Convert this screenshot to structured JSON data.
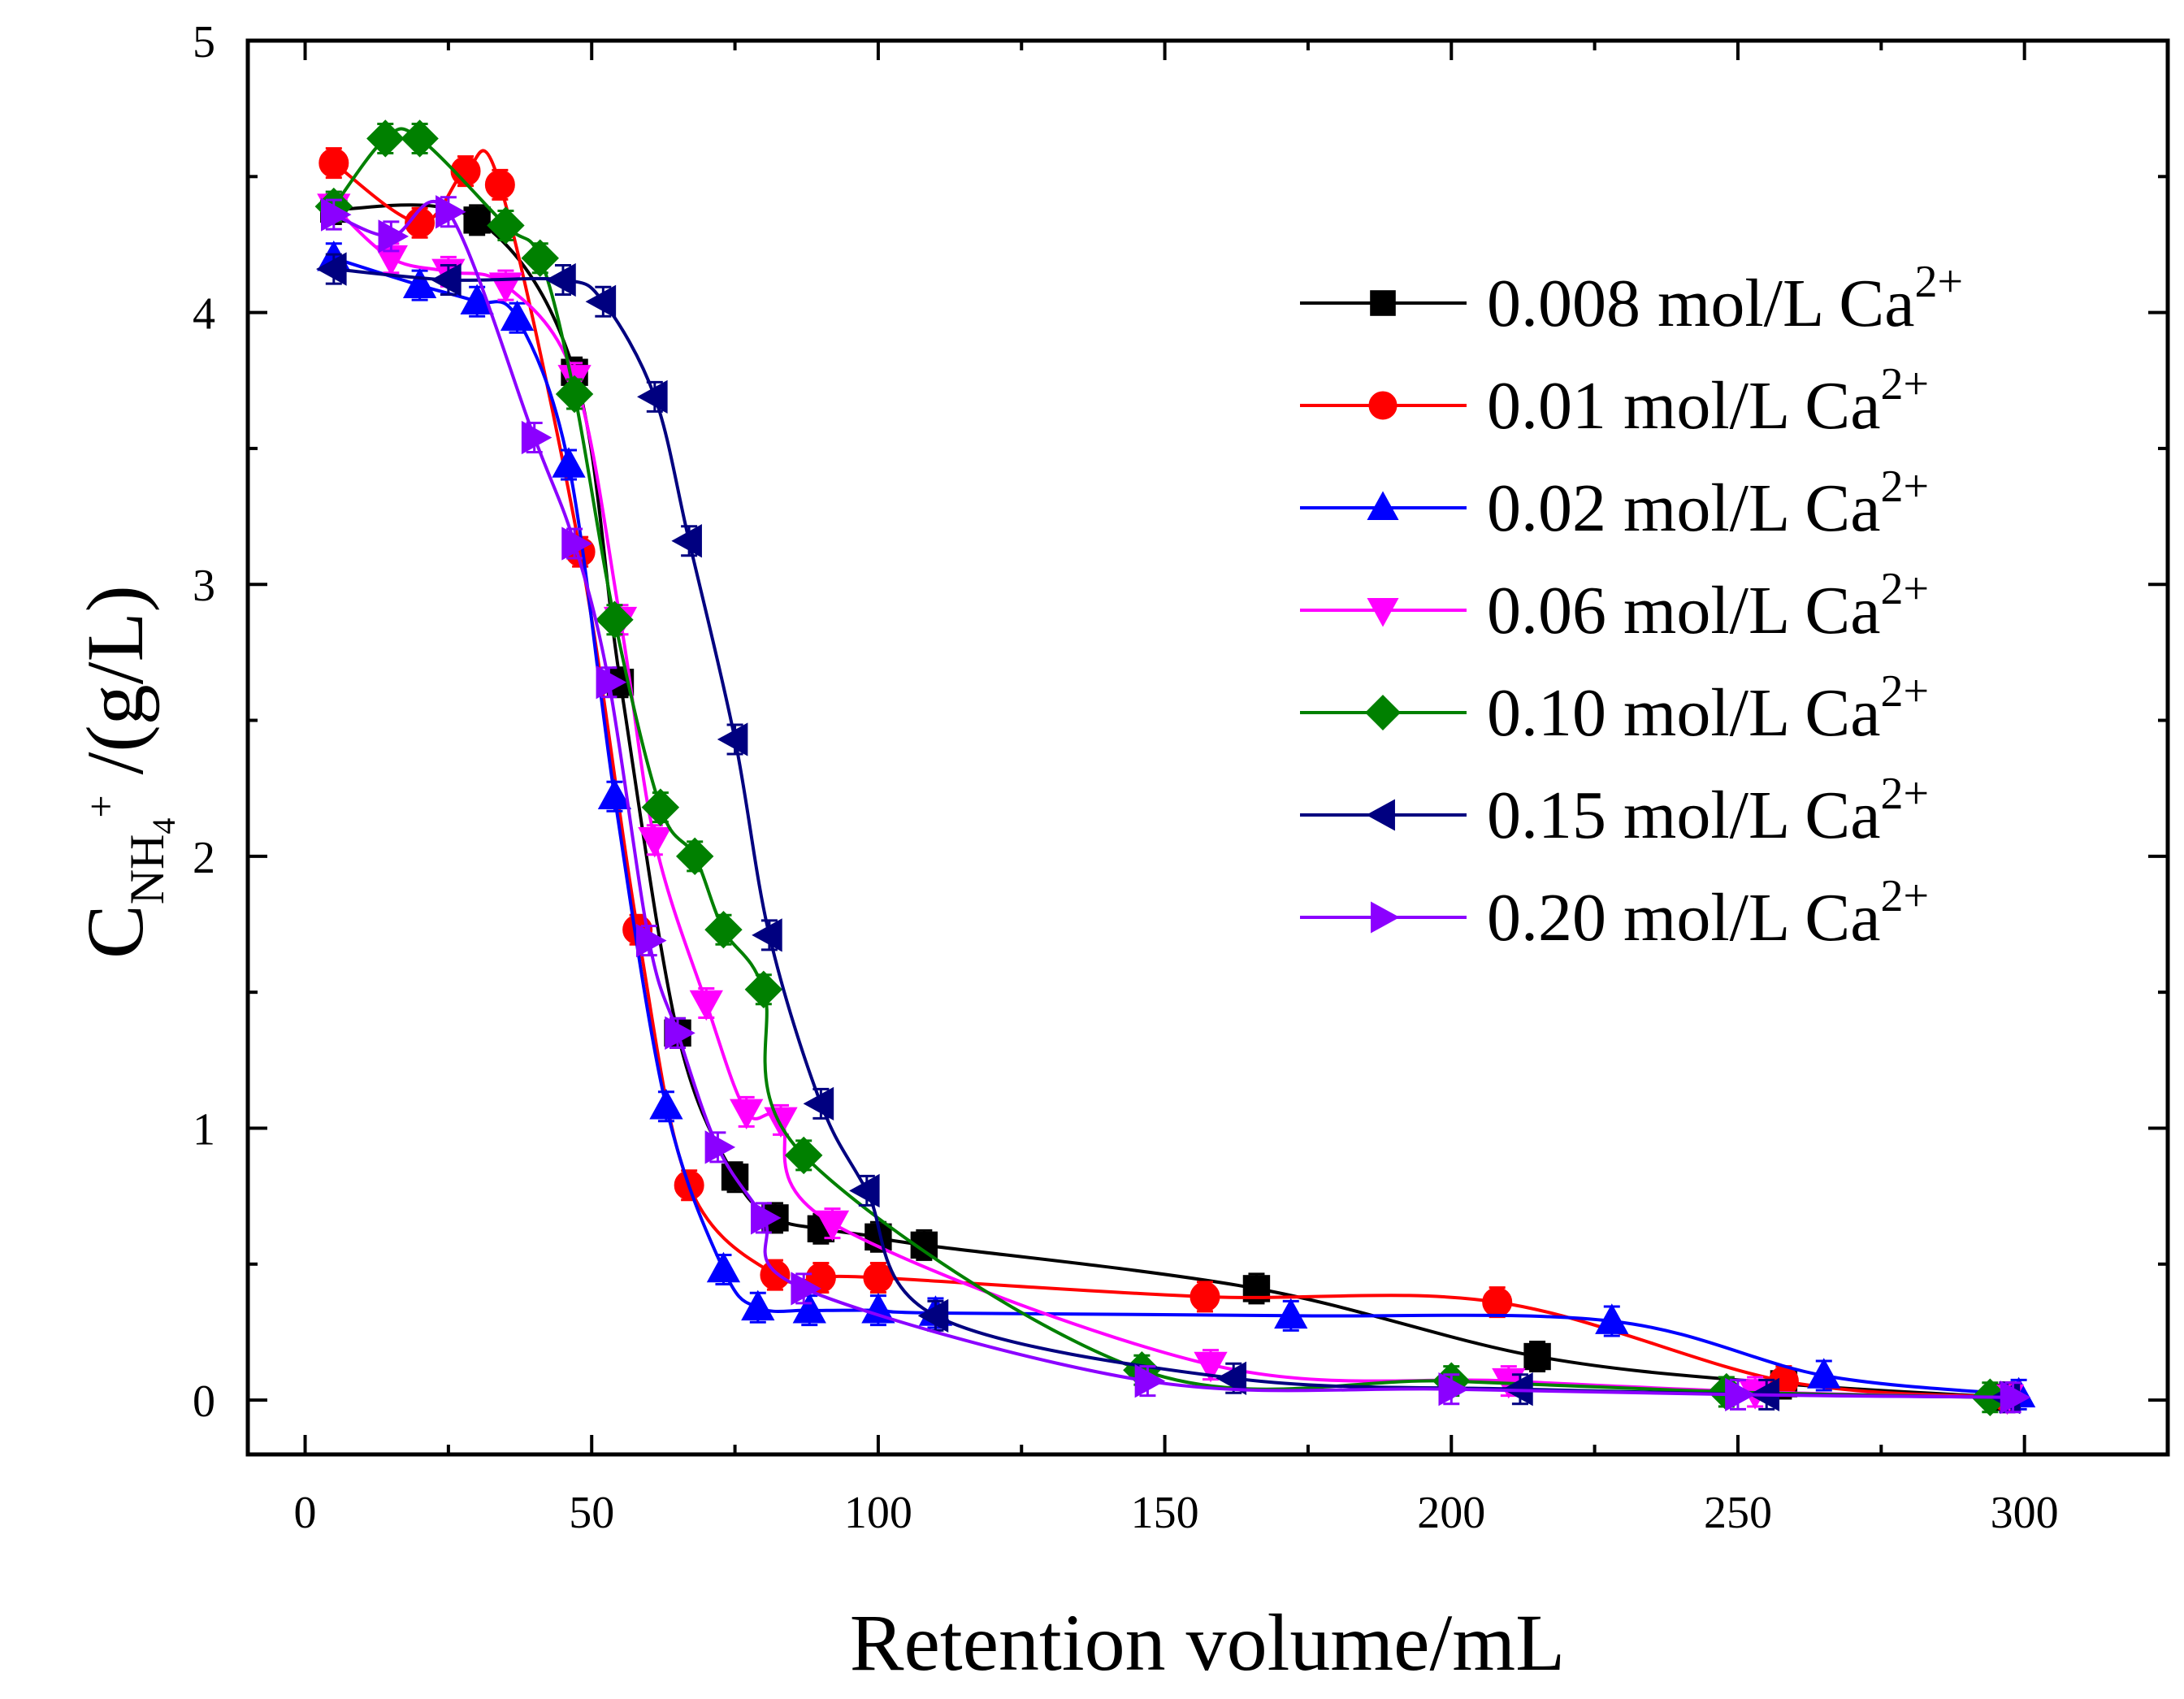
{
  "chart_data": {
    "type": "line",
    "title": "",
    "xlabel": "Retention volume/mL",
    "ylabel": {
      "main": "C",
      "sub": "NH",
      "sub_index": "4",
      "sup": "+",
      "unit": " /(g/L)"
    },
    "xlim": [
      -10,
      325
    ],
    "ylim": [
      -0.2,
      5
    ],
    "xticks": [
      0,
      50,
      100,
      150,
      200,
      250,
      300
    ],
    "yticks": [
      0,
      1,
      2,
      3,
      4,
      5
    ],
    "xtick_labels": [
      "0",
      "50",
      "100",
      "150",
      "200",
      "250",
      "300"
    ],
    "ytick_labels": [
      "0",
      "1",
      "2",
      "3",
      "4",
      "5"
    ],
    "legend_position": "top-right",
    "series": [
      {
        "name": "0.008 mol/L Ca",
        "ion": "2+",
        "color": "#000000",
        "marker": "square",
        "x": [
          5,
          30,
          47,
          55,
          65,
          75,
          82,
          90,
          100,
          108,
          166,
          215,
          258,
          297
        ],
        "y": [
          4.38,
          4.34,
          3.78,
          2.64,
          1.35,
          0.82,
          0.67,
          0.63,
          0.6,
          0.57,
          0.41,
          0.16,
          0.06,
          0.01
        ]
      },
      {
        "name": "0.01 mol/L Ca",
        "ion": "2+",
        "color": "#ff0000",
        "marker": "circle",
        "x": [
          5,
          20,
          28,
          34,
          48,
          58,
          67,
          82,
          90,
          100,
          157,
          208,
          258,
          297
        ],
        "y": [
          4.55,
          4.33,
          4.52,
          4.47,
          3.12,
          1.73,
          0.79,
          0.46,
          0.45,
          0.45,
          0.38,
          0.36,
          0.07,
          0.01
        ]
      },
      {
        "name": "0.02 mol/L Ca",
        "ion": "2+",
        "color": "#0000ff",
        "marker": "triangle-up",
        "x": [
          5,
          20,
          30,
          37,
          46,
          54,
          63,
          73,
          79,
          88,
          100,
          110,
          172,
          228,
          265,
          299
        ],
        "y": [
          4.2,
          4.1,
          4.04,
          3.98,
          3.44,
          2.22,
          1.08,
          0.48,
          0.34,
          0.33,
          0.33,
          0.32,
          0.31,
          0.29,
          0.09,
          0.02
        ]
      },
      {
        "name": "0.06 mol/L Ca",
        "ion": "2+",
        "color": "#ff00ff",
        "marker": "triangle-down",
        "x": [
          5,
          15,
          25,
          35,
          47,
          55,
          61,
          70,
          77,
          83,
          92,
          158,
          210,
          253,
          297
        ],
        "y": [
          4.39,
          4.2,
          4.15,
          4.1,
          3.76,
          2.87,
          2.06,
          1.46,
          1.06,
          1.03,
          0.65,
          0.13,
          0.07,
          0.03,
          0.01
        ]
      },
      {
        "name": "0.10 mol/L Ca",
        "ion": "2+",
        "color": "#008000",
        "marker": "diamond",
        "x": [
          5,
          14,
          20,
          35,
          41,
          47,
          54,
          62,
          68,
          73,
          80,
          87,
          146,
          200,
          248,
          294
        ],
        "y": [
          4.39,
          4.64,
          4.64,
          4.32,
          4.2,
          3.7,
          2.87,
          2.18,
          2.0,
          1.73,
          1.51,
          0.9,
          0.11,
          0.07,
          0.03,
          0.01
        ]
      },
      {
        "name": "0.15 mol/L Ca",
        "ion": "2+",
        "color": "#000080",
        "marker": "triangle-left",
        "x": [
          5,
          25,
          45,
          52,
          61,
          67,
          75,
          81,
          90,
          98,
          110,
          162,
          212,
          255,
          297
        ],
        "y": [
          4.16,
          4.12,
          4.12,
          4.04,
          3.69,
          3.16,
          2.43,
          1.71,
          1.09,
          0.77,
          0.31,
          0.08,
          0.04,
          0.02,
          0.01
        ]
      },
      {
        "name": "0.20 mol/L Ca",
        "ion": "2+",
        "color": "#8b00ff",
        "marker": "triangle-right",
        "x": [
          5,
          15,
          25,
          40,
          47,
          53,
          60,
          65,
          72,
          80,
          87,
          147,
          200,
          250,
          298
        ],
        "y": [
          4.36,
          4.28,
          4.37,
          3.54,
          3.15,
          2.64,
          1.69,
          1.35,
          0.93,
          0.67,
          0.41,
          0.07,
          0.04,
          0.02,
          0.01
        ]
      }
    ]
  }
}
